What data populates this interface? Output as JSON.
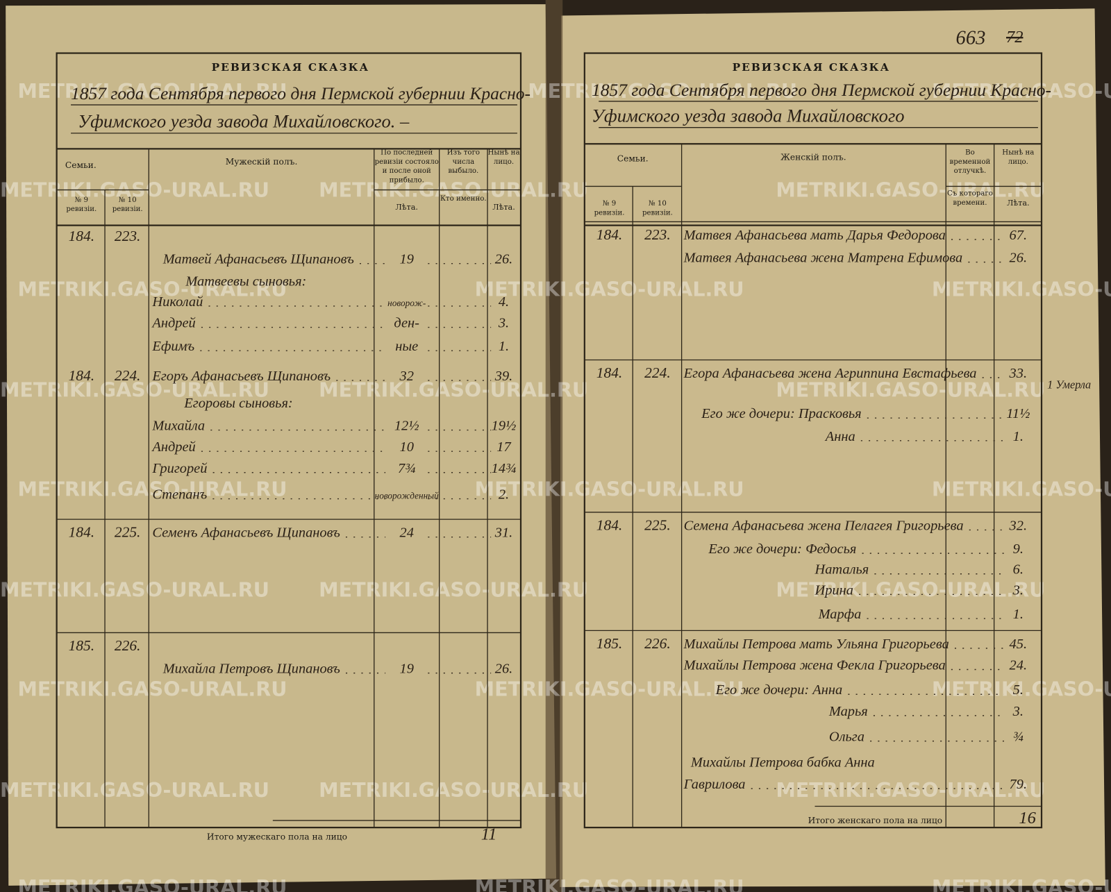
{
  "page_number": "663",
  "page_number_old": "72",
  "watermark": "METRIKI.GASO-URAL.RU",
  "left_page": {
    "title": "РЕВИЗСКАЯ СКАЗКА",
    "header_line_1": "1857 года Сентября первого дня Пермской губернии Красно-",
    "header_line_2": "Уфимского уезда завода Михайловского. –",
    "columns": {
      "families": "Семьи.",
      "gender": "Мужескій полъ.",
      "last_revision": "По последней ревизіи состояло и после оной прибыло.",
      "departed": "Изъ того числа выбыло.",
      "present": "Нынѣ на лицо.",
      "no9": "№ 9 ревизіи.",
      "no10": "№ 10 ревизіи.",
      "years_last": "Лѣта.",
      "who": "Кто именно.",
      "years_present": "Лѣта."
    },
    "entries": [
      {
        "no9": "184.",
        "no10": "223."
      },
      {
        "name": "Матвей Афанасьевъ Щипановъ",
        "last_revision": "19",
        "present": "26."
      },
      {
        "name": "Матвеевы сыновья:"
      },
      {
        "name": "Николай",
        "last_revision": "новорож-",
        "present": "4."
      },
      {
        "name": "Андрей",
        "last_revision": "ден-",
        "present": "3."
      },
      {
        "name": "Ефимъ",
        "last_revision": "ные",
        "present": "1."
      },
      {
        "no9": "184.",
        "no10": "224.",
        "name": "Егоръ Афанасьевъ Щипановъ",
        "last_revision": "32",
        "present": "39."
      },
      {
        "name": "Егоровы сыновья:"
      },
      {
        "name": "Михайла",
        "last_revision": "12½",
        "present": "19½"
      },
      {
        "name": "Андрей",
        "last_revision": "10",
        "present": "17"
      },
      {
        "name": "Григорей",
        "last_revision": "7¾",
        "present": "14¾"
      },
      {
        "name": "Степанъ",
        "last_revision": "новорожденный",
        "present": "2."
      },
      {
        "no9": "184.",
        "no10": "225.",
        "name": "Семенъ Афанасьевъ Щипановъ",
        "last_revision": "24",
        "present": "31."
      },
      {
        "no9": "185.",
        "no10": "226."
      },
      {
        "name": "Михайла Петровъ Щипановъ",
        "last_revision": "19",
        "present": "26."
      }
    ],
    "footer": "Итого мужескаго пола на лицо",
    "total": "11"
  },
  "right_page": {
    "title": "РЕВИЗСКАЯ СКАЗКА",
    "header_line_1": "1857 года Сентября первого дня Пермской губернии Красно-",
    "header_line_2": "Уфимского уезда завода Михайловского",
    "columns": {
      "families": "Семьи.",
      "gender": "Женскій полъ.",
      "absence": "Во временной отлучкѣ.",
      "present": "Нынѣ на лицо.",
      "no9": "№ 9 ревизіи.",
      "no10": "№ 10 ревизіи.",
      "since": "Съ котораго времени.",
      "years_present": "Лѣта."
    },
    "entries": [
      {
        "no9": "184.",
        "no10": "223.",
        "name": "Матвея Афанасьева мать Дарья Федорова",
        "present": "67."
      },
      {
        "name": "Матвея Афанасьева жена Матрена Ефимова",
        "present": "26."
      },
      {
        "no9": "184.",
        "no10": "224.",
        "name": "Егора Афанасьева жена Агриппина Евстафьева",
        "present": "33."
      },
      {
        "name": "Его же дочери: Прасковья",
        "present": "11½"
      },
      {
        "name": "Анна",
        "present": "1."
      },
      {
        "no9": "184.",
        "no10": "225.",
        "name": "Семена Афанасьева жена Пелагея Григорьева",
        "present": "32."
      },
      {
        "name": "Его же дочери: Федосья",
        "present": "9."
      },
      {
        "name": "Наталья",
        "present": "6."
      },
      {
        "name": "Ирина",
        "present": "3."
      },
      {
        "name": "Марфа",
        "present": "1."
      },
      {
        "no9": "185.",
        "no10": "226.",
        "name": "Михайлы Петрова мать Ульяна Григорьева",
        "present": "45."
      },
      {
        "name": "Михайлы Петрова жена Фекла Григорьева",
        "present": "24."
      },
      {
        "name": "Его же дочери: Анна",
        "present": "5."
      },
      {
        "name": "Марья",
        "present": "3."
      },
      {
        "name": "Ольга",
        "present": "¾"
      },
      {
        "name": "Михайлы Петрова бабка Анна"
      },
      {
        "name": "Гаврилова",
        "present": "79."
      }
    ],
    "margin_note": "1 Умерла",
    "footer": "Итого женскаго пола на лицо",
    "total": "16"
  }
}
